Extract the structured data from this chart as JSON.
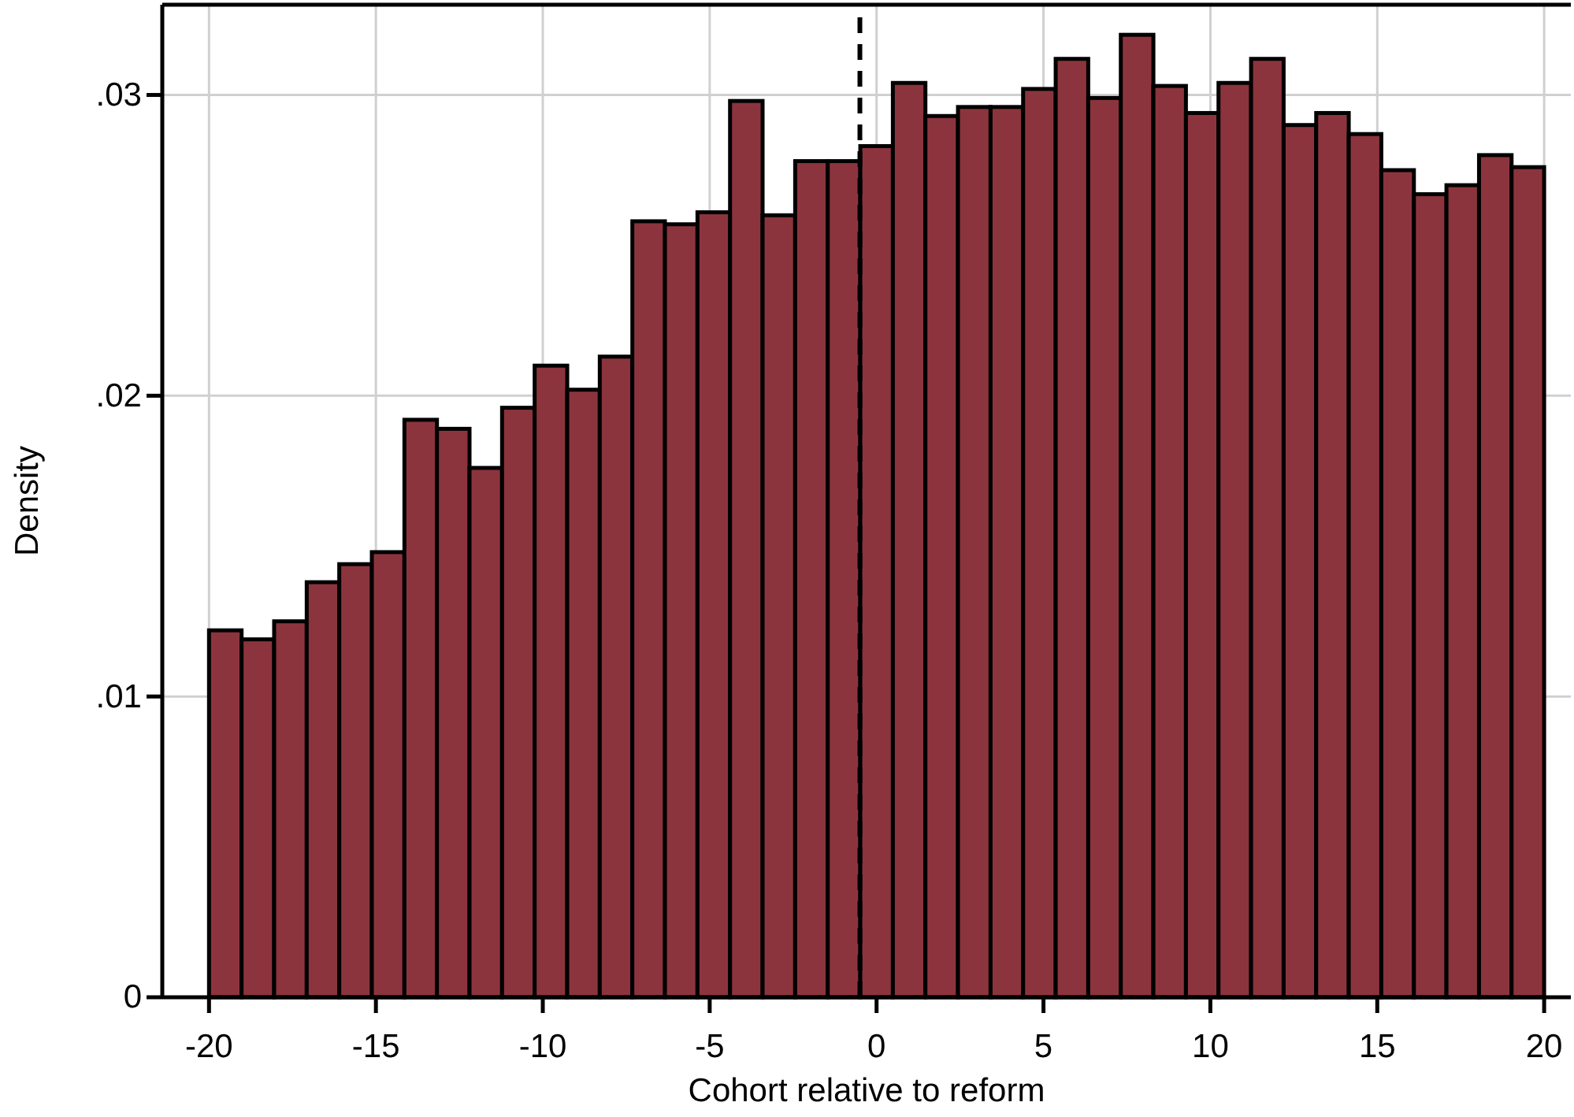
{
  "chart_data": {
    "type": "histogram",
    "xlabel": "Cohort relative to reform",
    "ylabel": "Density",
    "bins": [
      -20,
      -19.024,
      -18.049,
      -17.073,
      -16.098,
      -15.122,
      -14.146,
      -13.171,
      -12.195,
      -11.22,
      -10.244,
      -9.268,
      -8.293,
      -7.317,
      -6.341,
      -5.366,
      -4.39,
      -3.415,
      -2.439,
      -1.463,
      -0.488,
      0.488,
      1.463,
      2.439,
      3.415,
      4.39,
      5.366,
      6.341,
      7.317,
      8.293,
      9.268,
      10.244,
      11.22,
      12.195,
      13.171,
      14.146,
      15.122,
      16.098,
      17.073,
      18.049,
      19.024,
      20
    ],
    "values": [
      0.0122,
      0.0119,
      0.0125,
      0.0138,
      0.0144,
      0.0148,
      0.0192,
      0.0189,
      0.0176,
      0.0196,
      0.021,
      0.0202,
      0.0213,
      0.0258,
      0.0257,
      0.0261,
      0.0298,
      0.026,
      0.0278,
      0.0278,
      0.0283,
      0.0304,
      0.0293,
      0.0296,
      0.0296,
      0.0302,
      0.0312,
      0.0299,
      0.032,
      0.0303,
      0.0294,
      0.0304,
      0.0312,
      0.029,
      0.0294,
      0.0287,
      0.0275,
      0.0267,
      0.027,
      0.028,
      0.0276
    ],
    "color": "#8c343d",
    "xlim": [
      -21.4,
      20.8
    ],
    "ylim": [
      0,
      0.033
    ],
    "xticks": [
      -20,
      -15,
      -10,
      -5,
      0,
      5,
      10,
      15,
      20
    ],
    "yticks": [
      0,
      {
        "value": 0.01,
        "label": ".01"
      },
      {
        "value": 0.02,
        "label": ".02"
      },
      {
        "value": 0.03,
        "label": ".03"
      }
    ],
    "grid": true,
    "ref_lines": [
      {
        "axis": "x",
        "value": -0.5,
        "line_style": "dashed",
        "color": "#000000"
      }
    ]
  }
}
